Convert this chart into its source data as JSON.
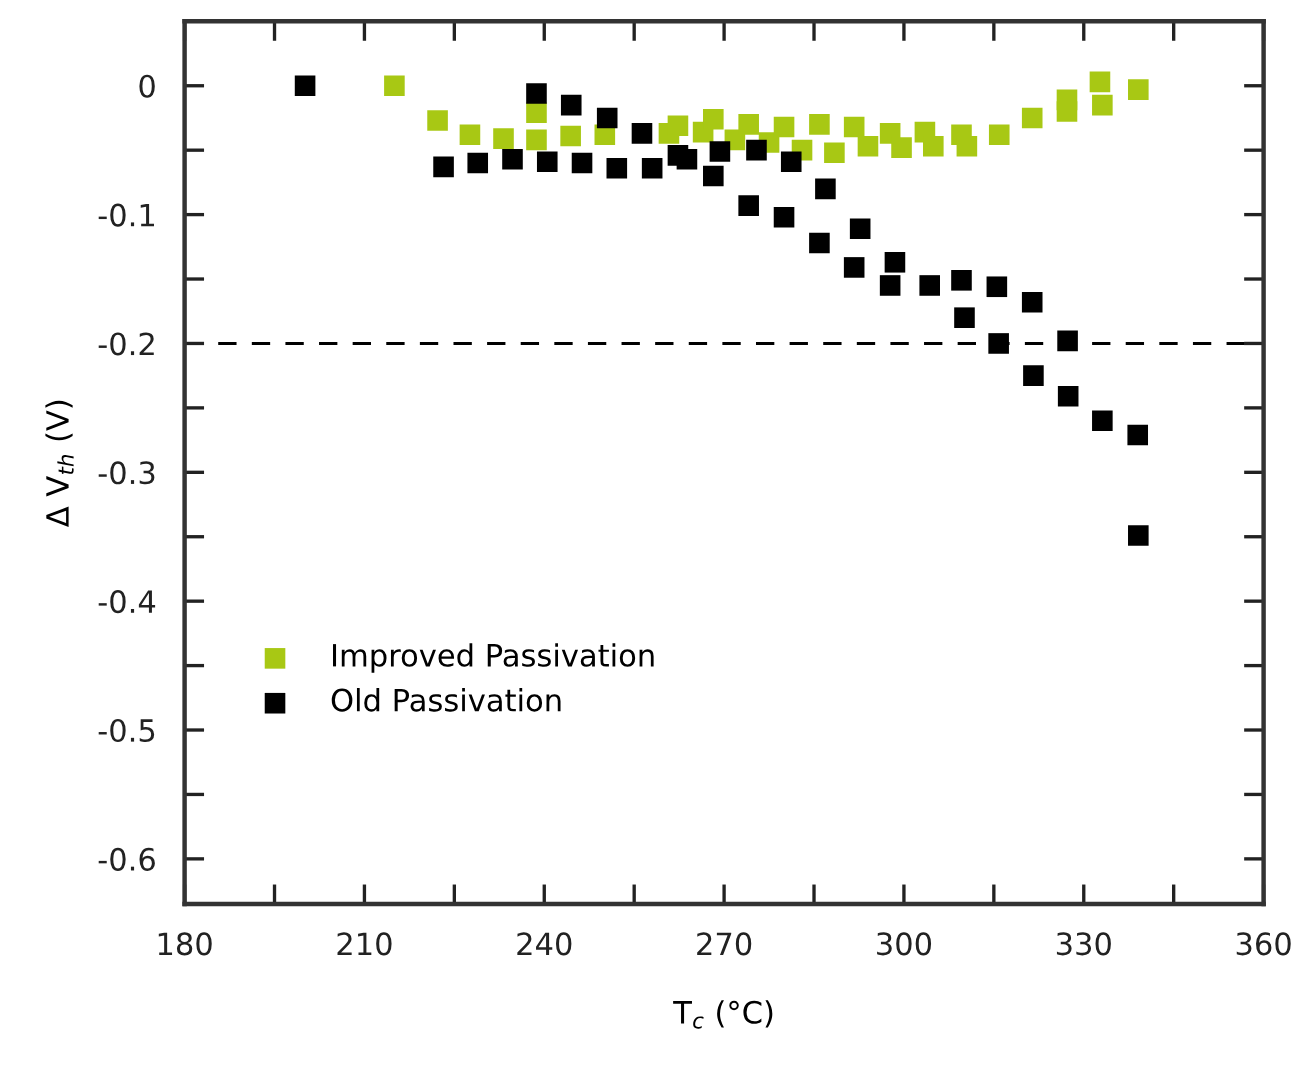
{
  "chart_data": {
    "type": "scatter",
    "xlabel": "T$_{c}$ (°C)",
    "ylabel": "Δ V$_{th}$ (V)",
    "xlim": [
      180,
      360
    ],
    "ylim": [
      -0.635,
      0.05
    ],
    "xticks": [
      180,
      {
        "value": 195,
        "label": null
      },
      210,
      {
        "value": 225,
        "label": null
      },
      240,
      {
        "value": 255,
        "label": null
      },
      270,
      {
        "value": 285,
        "label": null
      },
      300,
      {
        "value": 315,
        "label": null
      },
      330,
      {
        "value": 345,
        "label": null
      },
      360
    ],
    "yticks": [
      {
        "value": -0.6,
        "label": "-0.6"
      },
      {
        "value": -0.55,
        "label": null
      },
      {
        "value": -0.5,
        "label": "-0.5"
      },
      {
        "value": -0.45,
        "label": null
      },
      {
        "value": -0.4,
        "label": "-0.4"
      },
      {
        "value": -0.35,
        "label": null
      },
      {
        "value": -0.3,
        "label": "-0.3"
      },
      {
        "value": -0.25,
        "label": null
      },
      {
        "value": -0.2,
        "label": "-0.2"
      },
      {
        "value": -0.15,
        "label": null
      },
      {
        "value": -0.1,
        "label": "-0.1"
      },
      {
        "value": -0.05,
        "label": null
      },
      0
    ],
    "marker": "square",
    "legend": "bottom left",
    "grid": false,
    "ref_lines": [
      {
        "axis": "y",
        "value": -0.2,
        "line_style": "dashed",
        "color": "#000000"
      }
    ],
    "series": [
      {
        "name": "Improved Passivation",
        "color": "#a8c814",
        "x": [
          215.0,
          222.2,
          227.6,
          233.2,
          238.7,
          238.7,
          244.4,
          250.1,
          256.1,
          260.8,
          262.3,
          266.5,
          268.2,
          271.8,
          274.1,
          277.5,
          280.0,
          283.0,
          285.9,
          288.4,
          291.7,
          294.0,
          297.7,
          299.6,
          303.5,
          304.9,
          309.6,
          310.5,
          315.5,
          315.9,
          321.4,
          327.2,
          327.2,
          332.7,
          333.1,
          339.1
        ],
        "values": [
          0.0,
          -0.027,
          -0.038,
          -0.041,
          -0.021,
          -0.042,
          -0.039,
          -0.038,
          null,
          -0.037,
          -0.031,
          -0.036,
          -0.026,
          -0.042,
          -0.03,
          -0.044,
          -0.032,
          -0.05,
          -0.03,
          -0.052,
          -0.032,
          -0.047,
          -0.037,
          -0.048,
          -0.036,
          -0.047,
          -0.038,
          -0.047,
          null,
          -0.038,
          -0.025,
          -0.011,
          -0.02,
          0.003,
          -0.015,
          -0.003
        ]
      },
      {
        "name": "Old Passivation",
        "color": "#000000",
        "x": [
          200.1,
          223.2,
          228.9,
          234.7,
          238.7,
          240.5,
          244.5,
          246.3,
          250.5,
          252.1,
          256.3,
          258.0,
          262.3,
          263.8,
          268.2,
          269.3,
          274.1,
          275.4,
          280.0,
          281.2,
          285.9,
          286.9,
          291.7,
          292.7,
          297.7,
          298.5,
          303.6,
          304.3,
          309.6,
          310.1,
          315.5,
          315.8,
          321.4,
          321.6,
          327.3,
          327.4,
          333.1,
          339.0,
          339.1
        ],
        "values": [
          0.0,
          -0.063,
          -0.06,
          -0.057,
          -0.006,
          -0.059,
          -0.015,
          -0.06,
          -0.025,
          -0.064,
          -0.037,
          -0.064,
          -0.054,
          -0.057,
          -0.07,
          -0.051,
          -0.093,
          -0.05,
          -0.102,
          -0.059,
          -0.122,
          -0.08,
          -0.141,
          -0.111,
          -0.155,
          -0.137,
          null,
          -0.155,
          -0.151,
          -0.18,
          -0.156,
          -0.2,
          -0.168,
          -0.225,
          -0.198,
          -0.241,
          -0.26,
          -0.271,
          -0.349
        ]
      }
    ]
  }
}
